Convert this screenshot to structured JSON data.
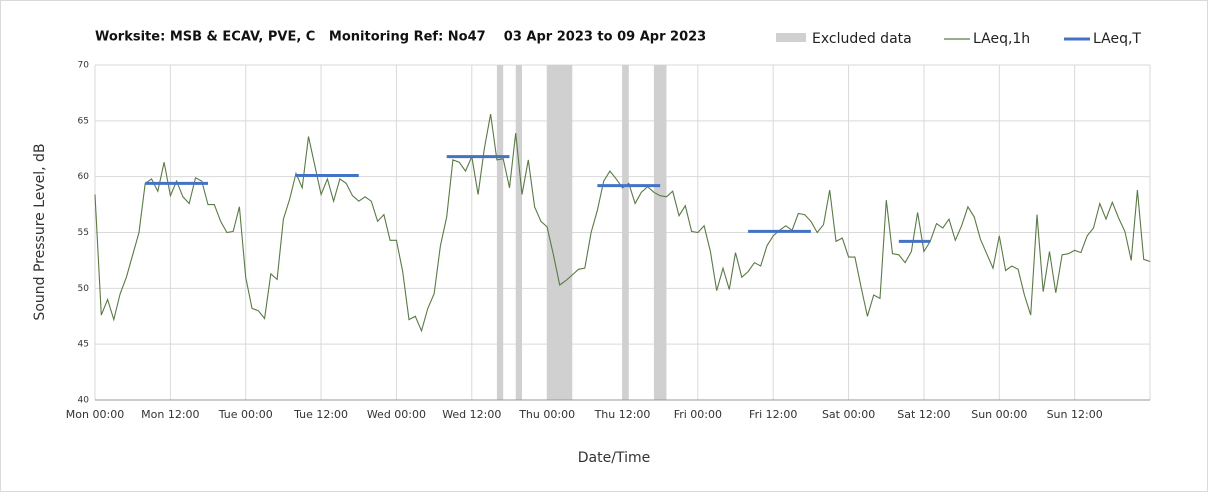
{
  "chart_data": {
    "type": "line",
    "title": "Worksite: MSB & ECAV, PVE, C   Monitoring Ref: No47    03 Apr 2023 to 09 Apr 2023",
    "x_label": "Date/Time",
    "y_label": "Sound Pressure Level, dB",
    "xlim": [
      0,
      168
    ],
    "xticks": [
      {
        "value": 0,
        "label": "Mon 00:00"
      },
      {
        "value": 12,
        "label": "Mon 12:00"
      },
      {
        "value": 24,
        "label": "Tue 00:00"
      },
      {
        "value": 36,
        "label": "Tue 12:00"
      },
      {
        "value": 48,
        "label": "Wed 00:00"
      },
      {
        "value": 60,
        "label": "Wed 12:00"
      },
      {
        "value": 72,
        "label": "Thu 00:00"
      },
      {
        "value": 84,
        "label": "Thu 12:00"
      },
      {
        "value": 96,
        "label": "Fri 00:00"
      },
      {
        "value": 108,
        "label": "Fri 12:00"
      },
      {
        "value": 120,
        "label": "Sat 00:00"
      },
      {
        "value": 132,
        "label": "Sat 12:00"
      },
      {
        "value": 144,
        "label": "Sun 00:00"
      },
      {
        "value": 156,
        "label": "Sun 12:00"
      }
    ],
    "ylim": [
      40,
      70
    ],
    "yticks": [
      40,
      45,
      50,
      55,
      60,
      65,
      70
    ],
    "grid": true,
    "excluded": {
      "name": "Excluded data",
      "color": "#d0d0d0",
      "ranges": [
        [
          64,
          65
        ],
        [
          67,
          68
        ],
        [
          72,
          76
        ],
        [
          84,
          85
        ],
        [
          89,
          91
        ]
      ]
    },
    "series": [
      {
        "name": "LAeq,1h",
        "color": "#5a7a46",
        "x": [
          0,
          1,
          2,
          3,
          4,
          5,
          6,
          7,
          8,
          9,
          10,
          11,
          12,
          13,
          14,
          15,
          16,
          17,
          18,
          19,
          20,
          21,
          22,
          23,
          24,
          25,
          26,
          27,
          28,
          29,
          30,
          31,
          32,
          33,
          34,
          35,
          36,
          37,
          38,
          39,
          40,
          41,
          42,
          43,
          44,
          45,
          46,
          47,
          48,
          49,
          50,
          51,
          52,
          53,
          54,
          55,
          56,
          57,
          58,
          59,
          60,
          61,
          62,
          63,
          64,
          65,
          66,
          67,
          68,
          69,
          70,
          71,
          72,
          73,
          74,
          75,
          76,
          77,
          78,
          79,
          80,
          81,
          82,
          83,
          84,
          85,
          86,
          87,
          88,
          89,
          90,
          91,
          92,
          93,
          94,
          95,
          96,
          97,
          98,
          99,
          100,
          101,
          102,
          103,
          104,
          105,
          106,
          107,
          108,
          109,
          110,
          111,
          112,
          113,
          114,
          115,
          116,
          117,
          118,
          119,
          120,
          121,
          122,
          123,
          124,
          125,
          126,
          127,
          128,
          129,
          130,
          131,
          132,
          133,
          134,
          135,
          136,
          137,
          138,
          139,
          140,
          141,
          142,
          143,
          144,
          145,
          146,
          147,
          148,
          149,
          150,
          151,
          152,
          153,
          154,
          155,
          156,
          157,
          158,
          159,
          160,
          161,
          162,
          163,
          164,
          165,
          166,
          167,
          168
        ],
        "values": [
          58.4,
          47.6,
          49.0,
          47.2,
          49.5,
          51,
          53,
          55,
          59.4,
          59.8,
          58.7,
          61.3,
          58.3,
          59.6,
          58.2,
          57.6,
          59.9,
          59.6,
          57.5,
          57.5,
          56,
          55,
          55.1,
          57.3,
          51,
          48.2,
          48,
          47.3,
          51.3,
          50.8,
          56.2,
          58,
          60.3,
          59,
          63.6,
          61,
          58.4,
          59.8,
          57.8,
          59.8,
          59.4,
          58.3,
          57.8,
          58.2,
          57.8,
          56,
          56.6,
          54.3,
          54.3,
          51.5,
          47.2,
          47.5,
          46.2,
          48.2,
          49.5,
          53.8,
          56.4,
          61.5,
          61.3,
          60.5,
          61.8,
          58.4,
          62.5,
          65.6,
          61.5,
          61.6,
          59,
          63.9,
          58.4,
          61.5,
          57.3,
          56,
          55.5,
          53,
          50.3,
          50.7,
          51.2,
          51.7,
          51.8,
          55,
          57,
          59.6,
          60.5,
          59.8,
          59,
          59.4,
          57.6,
          58.6,
          59.1,
          58.6,
          58.3,
          58.2,
          58.7,
          56.5,
          57.4,
          55.1,
          55,
          55.6,
          53.3,
          49.8,
          51.8,
          49.9,
          53.2,
          51,
          51.5,
          52.3,
          52,
          53.8,
          54.7,
          55.2,
          55.6,
          55.2,
          56.7,
          56.6,
          56,
          55,
          55.7,
          58.8,
          54.2,
          54.5,
          52.8,
          52.8,
          50.1,
          47.5,
          49.4,
          49.1,
          57.9,
          53.1,
          53,
          52.3,
          53.3,
          56.8,
          53.3,
          54.2,
          55.8,
          55.4,
          56.2,
          54.3,
          55.6,
          57.3,
          56.4,
          54.4,
          53.1,
          51.8,
          54.7,
          51.6,
          52,
          51.7,
          49.4,
          47.6,
          56.6,
          49.7,
          53.3,
          49.6,
          53,
          53.1,
          53.4,
          53.2,
          54.7,
          55.4,
          57.6,
          56.2,
          57.7,
          56.3,
          55.1,
          52.5,
          58.8,
          52.6,
          52.4
        ]
      },
      {
        "name": "LAeq,T",
        "color": "#4472c4",
        "segments": [
          {
            "x": [
              8,
              18
            ],
            "value": 59.4
          },
          {
            "x": [
              32,
              42
            ],
            "value": 60.1
          },
          {
            "x": [
              56,
              66
            ],
            "value": 61.8
          },
          {
            "x": [
              80,
              90
            ],
            "value": 59.2
          },
          {
            "x": [
              104,
              114
            ],
            "value": 55.1
          },
          {
            "x": [
              128,
              133
            ],
            "value": 54.2
          }
        ]
      }
    ]
  }
}
